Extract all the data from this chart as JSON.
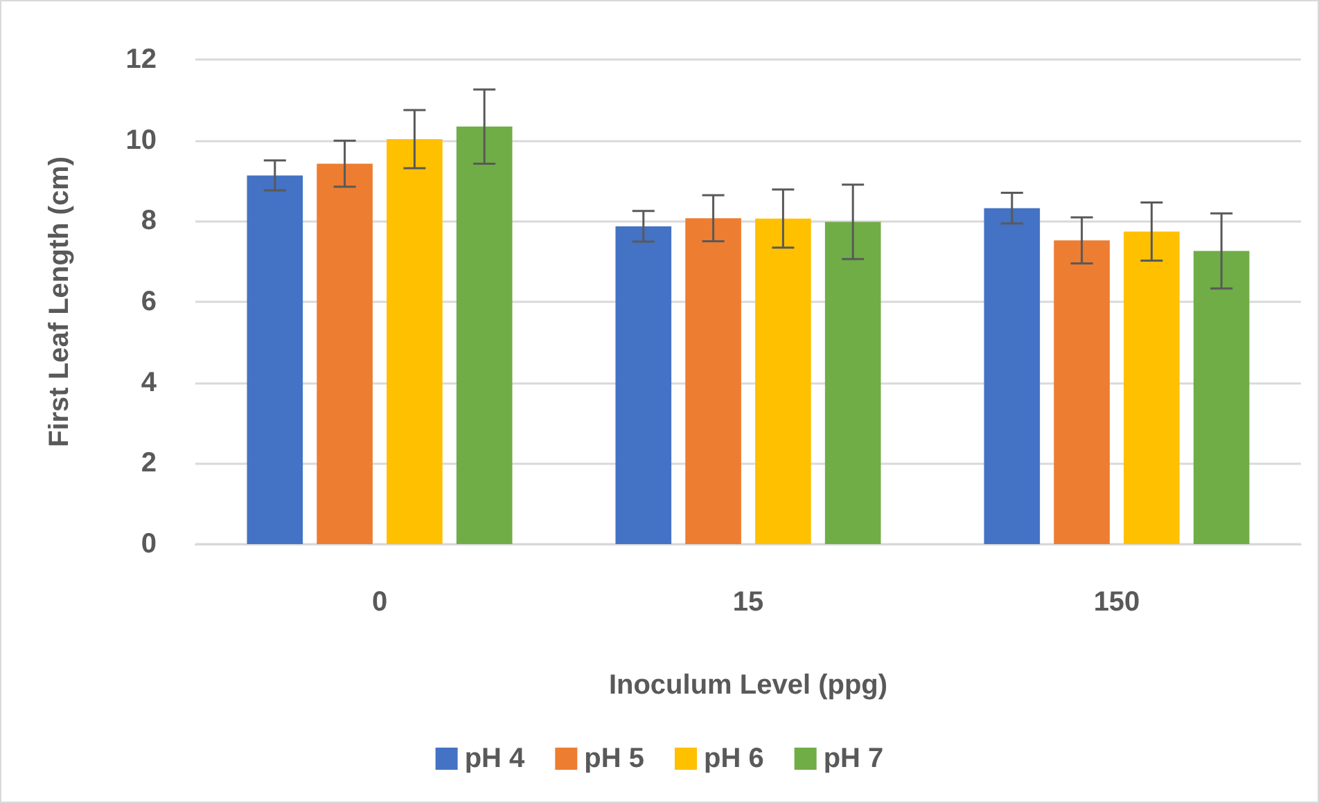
{
  "chart_data": {
    "type": "bar",
    "xlabel": "Inoculum Level (ppg)",
    "ylabel": "First Leaf Length (cm)",
    "categories": [
      "0",
      "15",
      "150"
    ],
    "series": [
      {
        "name": "pH 4",
        "color": "#4472c4",
        "values": [
          9.13,
          7.87,
          8.32
        ],
        "errors": [
          0.37,
          0.38,
          0.38
        ]
      },
      {
        "name": "pH 5",
        "color": "#ed7d31",
        "values": [
          9.42,
          8.07,
          7.52
        ],
        "errors": [
          0.57,
          0.57,
          0.57
        ]
      },
      {
        "name": "pH 6",
        "color": "#ffc000",
        "values": [
          10.03,
          8.06,
          7.74
        ],
        "errors": [
          0.72,
          0.72,
          0.72
        ]
      },
      {
        "name": "pH 7",
        "color": "#70ad47",
        "values": [
          10.34,
          7.98,
          7.26
        ],
        "errors": [
          0.92,
          0.92,
          0.93
        ]
      }
    ],
    "ylim": [
      0,
      12
    ],
    "yticks": [
      0,
      2,
      4,
      6,
      8,
      10,
      12
    ],
    "grid": "y",
    "legend": "bottom"
  }
}
